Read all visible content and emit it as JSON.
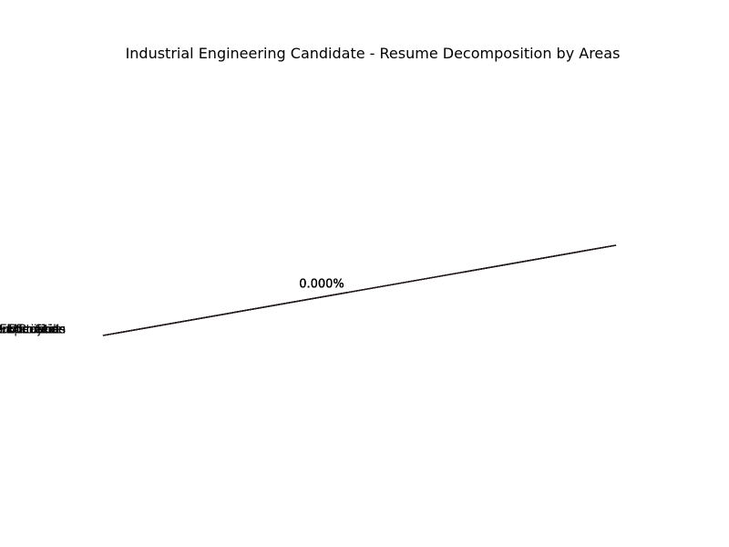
{
  "chart_data": {
    "type": "pie",
    "title": "Industrial Engineering Candidate - Resume Decomposition by Areas",
    "categories": [
      "Education",
      "Work Experience",
      "Skills",
      "Certifications",
      "Projects",
      "Extracurricular Activities",
      "Publications"
    ],
    "values": [
      0,
      0,
      0,
      0,
      0,
      0,
      0
    ],
    "percent_labels": [
      "0.000%",
      "0.000%",
      "0.000%",
      "0.000%",
      "0.000%",
      "0.000%",
      "0.000%"
    ],
    "colors": [
      "#2b1216",
      "#3a1a20",
      "#2d2226",
      "#241c1f",
      "#331a1f",
      "#2a1a1e",
      "#1f1a1c"
    ],
    "legend": false
  }
}
